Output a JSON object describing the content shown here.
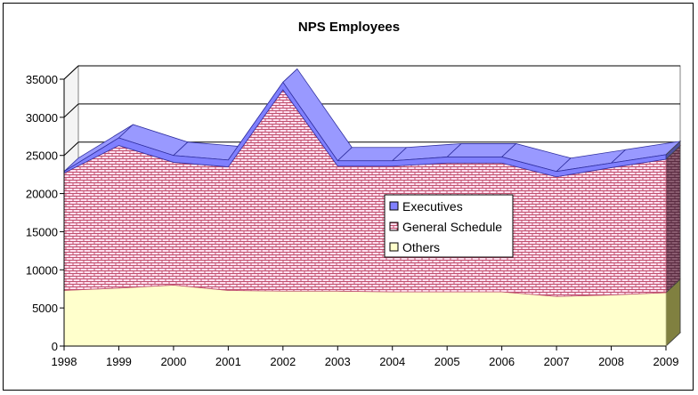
{
  "chart_data": {
    "type": "area",
    "stacked": true,
    "three_d": true,
    "title": "NPS Employees",
    "xlabel": "",
    "ylabel": "",
    "x": [
      "1998",
      "1999",
      "2000",
      "2001",
      "2002",
      "2003",
      "2004",
      "2005",
      "2006",
      "2007",
      "2008",
      "2009"
    ],
    "ylim": [
      0,
      35000
    ],
    "yticks": [
      0,
      5000,
      10000,
      15000,
      20000,
      25000,
      30000,
      35000
    ],
    "ytick_labels": [
      "0",
      "5000",
      "10000",
      "15000",
      "20000",
      "25000",
      "30000",
      "35000"
    ],
    "grid": true,
    "legend_position": "center-right",
    "series": [
      {
        "name": "Others",
        "color": "#ffffcc",
        "values": [
          7300,
          7600,
          8000,
          7300,
          7200,
          7200,
          7100,
          7100,
          7100,
          6500,
          6700,
          7000
        ]
      },
      {
        "name": "General Schedule",
        "color": "#ffe0f0",
        "values": [
          15400,
          18700,
          16100,
          16200,
          26400,
          16400,
          16500,
          16900,
          16900,
          15700,
          16700,
          17500
        ]
      },
      {
        "name": "Executives",
        "color": "#8080ff",
        "values": [
          200,
          1000,
          900,
          900,
          1000,
          700,
          700,
          800,
          800,
          700,
          600,
          600
        ]
      }
    ],
    "legend": [
      "Executives",
      "General Schedule",
      "Others"
    ]
  }
}
